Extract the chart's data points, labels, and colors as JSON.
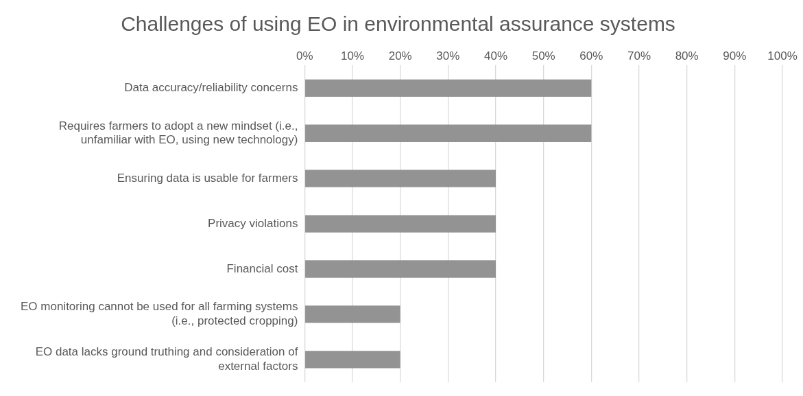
{
  "chart_data": {
    "type": "bar",
    "orientation": "horizontal",
    "title": "Challenges of using EO in environmental assurance systems",
    "categories": [
      "Data accuracy/reliability concerns",
      "Requires farmers to adopt a new mindset (i.e., unfamiliar with EO, using new technology)",
      "Ensuring data is usable for farmers",
      "Privacy violations",
      "Financial cost",
      "EO monitoring cannot be used for all farming systems (i.e., protected cropping)",
      "EO data lacks ground truthing and consideration of external factors"
    ],
    "values": [
      60,
      60,
      40,
      40,
      40,
      20,
      20
    ],
    "color": "#939393",
    "xlim": [
      0,
      100
    ],
    "xticks": [
      {
        "value": 0,
        "label": "0%"
      },
      {
        "value": 10,
        "label": "10%"
      },
      {
        "value": 20,
        "label": "20%"
      },
      {
        "value": 30,
        "label": "30%"
      },
      {
        "value": 40,
        "label": "40%"
      },
      {
        "value": 50,
        "label": "50%"
      },
      {
        "value": 60,
        "label": "60%"
      },
      {
        "value": 70,
        "label": "70%"
      },
      {
        "value": 80,
        "label": "80%"
      },
      {
        "value": 90,
        "label": "90%"
      },
      {
        "value": 100,
        "label": "100%"
      }
    ],
    "grid": "x",
    "legend": false
  }
}
